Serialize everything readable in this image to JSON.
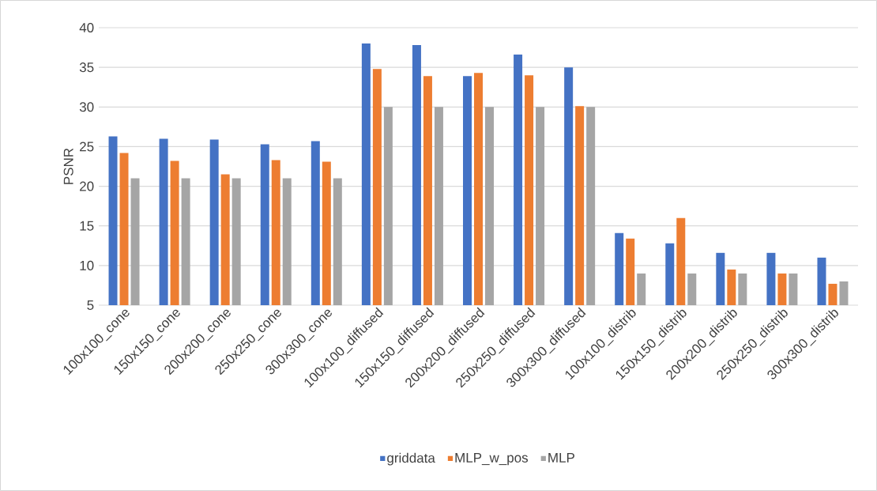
{
  "chart_data": {
    "type": "bar",
    "ylabel": "PSNR",
    "categories": [
      "100x100_cone",
      "150x150_cone",
      "200x200_cone",
      "250x250_cone",
      "300x300_cone",
      "100x100_diffused",
      "150x150_diffused",
      "200x200_diffused",
      "250x250_diffused",
      "300x300_diffused",
      "100x100_distrib",
      "150x150_distrib",
      "200x200_distrib",
      "250x250_distrib",
      "300x300_distrib"
    ],
    "series": [
      {
        "name": "griddata",
        "color": "#4472c4",
        "values": [
          26.3,
          26.0,
          25.9,
          25.3,
          25.7,
          38.0,
          37.8,
          33.9,
          36.6,
          35.0,
          14.1,
          12.8,
          11.6,
          11.6,
          11.0
        ]
      },
      {
        "name": "MLP_w_pos",
        "color": "#ed7d31",
        "values": [
          24.2,
          23.2,
          21.5,
          23.3,
          23.1,
          34.8,
          33.9,
          34.3,
          34.0,
          30.1,
          13.4,
          16.0,
          9.5,
          9.0,
          7.7
        ]
      },
      {
        "name": "MLP",
        "color": "#a5a5a5",
        "values": [
          21,
          21,
          21,
          21,
          21,
          30,
          30,
          30,
          30,
          30,
          9,
          9,
          9,
          9,
          8
        ]
      }
    ],
    "ylim": [
      5,
      40
    ],
    "yticks": [
      5,
      10,
      15,
      20,
      25,
      30,
      35,
      40
    ],
    "grid": "y",
    "legend": "bottom"
  }
}
